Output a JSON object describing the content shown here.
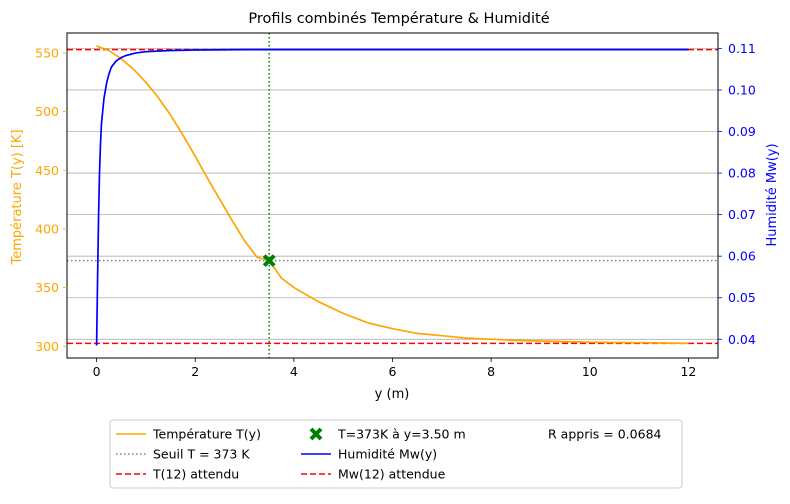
{
  "chart_data": {
    "type": "line",
    "title": "Profils combinés Température & Humidité",
    "xlabel": "y (m)",
    "ylabel_left": "Température T(y) [K]",
    "ylabel_right": "Humidité Mw(y)",
    "xlim": [
      -0.6,
      12.6
    ],
    "ylim_left": [
      290,
      567
    ],
    "ylim_right": [
      0.0355,
      0.1137
    ],
    "xticks": [
      "0",
      "2",
      "4",
      "6",
      "8",
      "10",
      "12"
    ],
    "yticks_left": [
      "300",
      "350",
      "400",
      "450",
      "500",
      "550"
    ],
    "yticks_right": [
      "0.04",
      "0.05",
      "0.06",
      "0.07",
      "0.08",
      "0.09",
      "0.10",
      "0.11"
    ],
    "grid": "horizontal, right axis",
    "colors": {
      "temperature": "#ffa500",
      "humidity": "#0000ff",
      "threshold": "#808080",
      "expected": "#ff0000",
      "marker": "#008000"
    },
    "series": [
      {
        "name": "Température T(y)",
        "axis": "left",
        "x": [
          0,
          0.25,
          0.5,
          0.75,
          1.0,
          1.25,
          1.5,
          1.75,
          2.0,
          2.25,
          2.5,
          2.75,
          3.0,
          3.25,
          3.5,
          3.75,
          4.0,
          4.5,
          5.0,
          5.5,
          6.0,
          6.5,
          7.0,
          7.5,
          8.0,
          8.5,
          9.0,
          9.5,
          10.0,
          10.5,
          11.0,
          11.5,
          12.0
        ],
        "y": [
          556,
          552,
          545,
          536,
          525,
          512,
          497,
          480,
          462,
          443,
          425,
          407,
          390,
          376,
          373,
          358,
          350,
          338,
          328,
          320,
          315,
          311,
          309,
          307,
          306,
          305,
          304.5,
          304,
          303.5,
          303.2,
          303,
          302.8,
          302.5
        ]
      },
      {
        "name": "Humidité Mw(y)",
        "axis": "right",
        "x": [
          0,
          0.02,
          0.04,
          0.06,
          0.08,
          0.1,
          0.15,
          0.2,
          0.25,
          0.3,
          0.4,
          0.5,
          0.6,
          0.8,
          1.0,
          1.5,
          2.0,
          3.0,
          4.0,
          6.0,
          8.0,
          10.0,
          12.0
        ],
        "y": [
          0.0385,
          0.055,
          0.07,
          0.08,
          0.087,
          0.092,
          0.098,
          0.1015,
          0.1038,
          0.1055,
          0.107,
          0.1078,
          0.1083,
          0.1089,
          0.1092,
          0.1095,
          0.1096,
          0.1097,
          0.1097,
          0.1097,
          0.1097,
          0.1097,
          0.1097
        ]
      }
    ],
    "reference_lines": [
      {
        "name": "Seuil T = 373 K",
        "axis": "left",
        "orientation": "horizontal",
        "value": 373,
        "style": "dotted",
        "color": "#808080"
      },
      {
        "name": "T(12) attendu",
        "axis": "left",
        "orientation": "horizontal",
        "value": 302.5,
        "style": "dashed",
        "color": "#ff0000"
      },
      {
        "name": "Mw(12) attendue",
        "axis": "right",
        "orientation": "horizontal",
        "value": 0.1097,
        "style": "dashed",
        "color": "#ff0000"
      },
      {
        "name": "",
        "axis": "x",
        "orientation": "vertical",
        "value": 3.5,
        "style": "dotted",
        "color": "#008000"
      }
    ],
    "marker": {
      "name": "T=373K à y=3.50 m",
      "x": 3.5,
      "y": 373,
      "axis": "left",
      "color": "#008000"
    },
    "legend": {
      "placement": "bottom-center",
      "entries": [
        {
          "label": "Température T(y)",
          "kind": "line",
          "color": "#ffa500",
          "style": "solid"
        },
        {
          "label": "Seuil T = 373 K",
          "kind": "line",
          "color": "#808080",
          "style": "dotted"
        },
        {
          "label": "T(12) attendu",
          "kind": "line",
          "color": "#ff0000",
          "style": "dashed"
        },
        {
          "label": "T=373K à y=3.50 m",
          "kind": "marker",
          "color": "#008000",
          "style": "x"
        },
        {
          "label": "Humidité Mw(y)",
          "kind": "line",
          "color": "#0000ff",
          "style": "solid"
        },
        {
          "label": "Mw(12) attendue",
          "kind": "line",
          "color": "#ff0000",
          "style": "dashed"
        },
        {
          "label": "R appris = 0.0684",
          "kind": "text",
          "color": "",
          "style": ""
        }
      ]
    }
  }
}
